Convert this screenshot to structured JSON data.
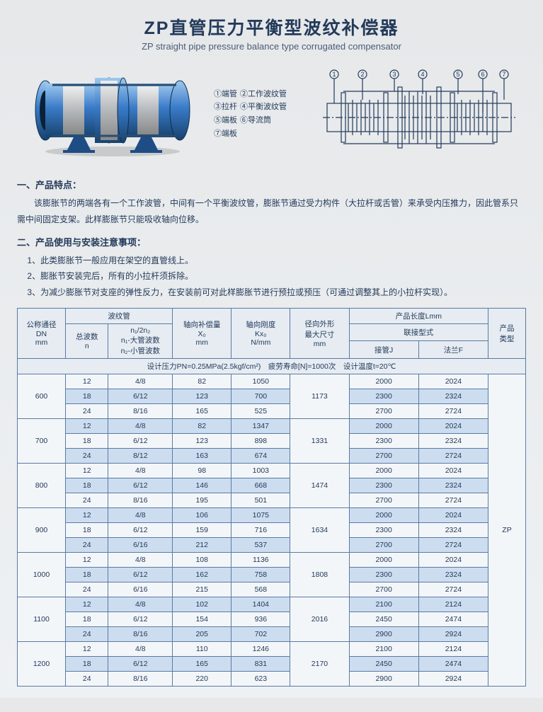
{
  "title_zh": "ZP直管压力平衡型波纹补偿器",
  "title_en": "ZP straight pipe pressure balance type corrugated compensator",
  "legend": [
    {
      "n": "①",
      "t": "端管"
    },
    {
      "n": "②",
      "t": "工作波纹管"
    },
    {
      "n": "③",
      "t": "拉杆"
    },
    {
      "n": "④",
      "t": "平衡波纹管"
    },
    {
      "n": "⑤",
      "t": "端板"
    },
    {
      "n": "⑥",
      "t": "导流筒"
    },
    {
      "n": "⑦",
      "t": "端板"
    }
  ],
  "sec1_head": "一、产品特点：",
  "sec1_body": "该膨胀节的两端各有一个工作波管，中间有一个平衡波纹管，膨胀节通过受力构件（大拉杆或舌管）来承受内压推力，因此管系只需中间固定支架。此样膨胀节只能吸收轴向位移。",
  "sec2_head": "二、产品使用与安装注意事项：",
  "sec2_items": [
    "1、此类膨胀节一般应用在架空的直管线上。",
    "2、膨胀节安装完后，所有的小拉杆须拆除。",
    "3、为减少膨胀节对支座的弹性反力，在安装前可对此样膨胀节进行预拉或预压（可通过调整其上的小拉杆实现）。"
  ],
  "columns": {
    "dn": "公称通径\nDN\nmm",
    "bellows": "波纹管",
    "waves": "总波数\nn",
    "ratio": "n₁/2n₂\nn₁-大管波数\nn₂-小管波数",
    "comp": "轴向补偿量\nX₀\nmm",
    "stiff": "轴向刚度\nKx₀\nN/mm",
    "outer": "径向外形\n最大尺寸\nmm",
    "len": "产品长度Lmm",
    "conn": "联接型式",
    "j": "接管J",
    "f": "法兰F",
    "type": "产品\n类型"
  },
  "design_row": "设计压力PN=0.25MPa(2.5kgf/cm²)　疲劳寿命[N]=1000次　设计温度t=20℃",
  "product_type": "ZP",
  "groups": [
    {
      "dn": "600",
      "outer": "1173",
      "rows": [
        {
          "w": "12",
          "r": "4/8",
          "c": "82",
          "s": "1050",
          "j": "2000",
          "f": "2024"
        },
        {
          "w": "18",
          "r": "6/12",
          "c": "123",
          "s": "700",
          "j": "2300",
          "f": "2324"
        },
        {
          "w": "24",
          "r": "8/16",
          "c": "165",
          "s": "525",
          "j": "2700",
          "f": "2724"
        }
      ]
    },
    {
      "dn": "700",
      "outer": "1331",
      "rows": [
        {
          "w": "12",
          "r": "4/8",
          "c": "82",
          "s": "1347",
          "j": "2000",
          "f": "2024"
        },
        {
          "w": "18",
          "r": "6/12",
          "c": "123",
          "s": "898",
          "j": "2300",
          "f": "2324"
        },
        {
          "w": "24",
          "r": "8/12",
          "c": "163",
          "s": "674",
          "j": "2700",
          "f": "2724"
        }
      ]
    },
    {
      "dn": "800",
      "outer": "1474",
      "rows": [
        {
          "w": "12",
          "r": "4/8",
          "c": "98",
          "s": "1003",
          "j": "2000",
          "f": "2024"
        },
        {
          "w": "18",
          "r": "6/12",
          "c": "146",
          "s": "668",
          "j": "2300",
          "f": "2324"
        },
        {
          "w": "24",
          "r": "8/16",
          "c": "195",
          "s": "501",
          "j": "2700",
          "f": "2724"
        }
      ]
    },
    {
      "dn": "900",
      "outer": "1634",
      "rows": [
        {
          "w": "12",
          "r": "4/8",
          "c": "106",
          "s": "1075",
          "j": "2000",
          "f": "2024"
        },
        {
          "w": "18",
          "r": "6/12",
          "c": "159",
          "s": "716",
          "j": "2300",
          "f": "2324"
        },
        {
          "w": "24",
          "r": "6/16",
          "c": "212",
          "s": "537",
          "j": "2700",
          "f": "2724"
        }
      ]
    },
    {
      "dn": "1000",
      "outer": "1808",
      "rows": [
        {
          "w": "12",
          "r": "4/8",
          "c": "108",
          "s": "1136",
          "j": "2000",
          "f": "2024"
        },
        {
          "w": "18",
          "r": "6/12",
          "c": "162",
          "s": "758",
          "j": "2300",
          "f": "2324"
        },
        {
          "w": "24",
          "r": "6/16",
          "c": "215",
          "s": "568",
          "j": "2700",
          "f": "2724"
        }
      ]
    },
    {
      "dn": "1100",
      "outer": "2016",
      "rows": [
        {
          "w": "12",
          "r": "4/8",
          "c": "102",
          "s": "1404",
          "j": "2100",
          "f": "2124"
        },
        {
          "w": "18",
          "r": "6/12",
          "c": "154",
          "s": "936",
          "j": "2450",
          "f": "2474"
        },
        {
          "w": "24",
          "r": "8/16",
          "c": "205",
          "s": "702",
          "j": "2900",
          "f": "2924"
        }
      ]
    },
    {
      "dn": "1200",
      "outer": "2170",
      "rows": [
        {
          "w": "12",
          "r": "4/8",
          "c": "110",
          "s": "1246",
          "j": "2100",
          "f": "2124"
        },
        {
          "w": "18",
          "r": "6/12",
          "c": "165",
          "s": "831",
          "j": "2450",
          "f": "2474"
        },
        {
          "w": "24",
          "r": "8/16",
          "c": "220",
          "s": "623",
          "j": "2900",
          "f": "2924"
        }
      ]
    }
  ],
  "colors": {
    "pipe_blue": "#3a7bc8",
    "pipe_dark": "#1e4d86",
    "bellows": "#c9ccd0",
    "stand": "#1e4d86",
    "diagram_stroke": "#233a5a"
  }
}
